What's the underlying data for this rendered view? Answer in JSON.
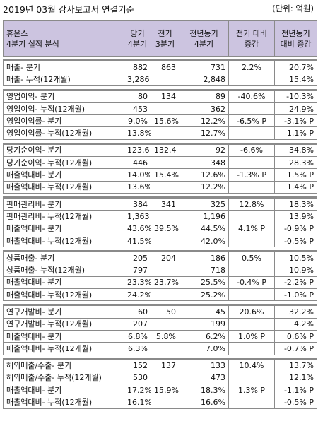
{
  "header": {
    "title": "2019년 03월 감사보고서 연결기준",
    "unit": "(단위: 억원)"
  },
  "table": {
    "columns": [
      "휴온스\n4분기 실적 분석",
      "당기\n4분기",
      "전기\n3분기",
      "전년동기\n4분기",
      "전기 대비\n증감",
      "전년동기\n대비 증감"
    ],
    "groups": [
      [
        [
          "매출- 분기",
          "882",
          "863",
          "731",
          "2.2%",
          "20.7%"
        ],
        [
          "매출- 누적(12개월)",
          "3,286",
          "",
          "2,848",
          "",
          "15.4%"
        ]
      ],
      [
        [
          "영업이익- 분기",
          "80",
          "134",
          "89",
          "-40.6%",
          "-10.3%"
        ],
        [
          "영업이익- 누적(12개월)",
          "453",
          "",
          "362",
          "",
          "24.9%"
        ],
        [
          "영업이익률- 분기",
          "9.0%",
          "15.6%",
          "12.2%",
          "-6.5% P",
          "-3.1% P"
        ],
        [
          "영업이익률- 누적(12개월)",
          "13.8%",
          "",
          "12.7%",
          "",
          "1.1% P"
        ]
      ],
      [
        [
          "당기순이익- 분기",
          "123.6",
          "132.4",
          "92",
          "-6.6%",
          "34.8%"
        ],
        [
          "당기순이익- 누적(12개월)",
          "446",
          "",
          "348",
          "",
          "28.3%"
        ],
        [
          "매출액대비- 분기",
          "14.0%",
          "15.4%",
          "12.6%",
          "-1.3% P",
          "1.5% P"
        ],
        [
          "매출액대비- 누적(12개월)",
          "13.6%",
          "",
          "12.2%",
          "",
          "1.4% P"
        ]
      ],
      [
        [
          "판매관리비- 분기",
          "384",
          "341",
          "325",
          "12.8%",
          "18.3%"
        ],
        [
          "판매관리비- 누적(12개월)",
          "1,363",
          "",
          "1,196",
          "",
          "13.9%"
        ],
        [
          "매출액대비- 분기",
          "43.6%",
          "39.5%",
          "44.5%",
          "4.1% P",
          "-0.9% P"
        ],
        [
          "매출액대비- 누적(12개월)",
          "41.5%",
          "",
          "42.0%",
          "",
          "-0.5% P"
        ]
      ],
      [
        [
          "상품매출- 분기",
          "205",
          "204",
          "186",
          "0.5%",
          "10.5%"
        ],
        [
          "상품매출- 누적(12개월)",
          "797",
          "",
          "718",
          "",
          "10.9%"
        ],
        [
          "매출액대비- 분기",
          "23.3%",
          "23.7%",
          "25.5%",
          "-0.4% P",
          "-2.2% P"
        ],
        [
          "매출액대비- 누적(12개월)",
          "24.2%",
          "",
          "25.2%",
          "",
          "-1.0% P"
        ]
      ],
      [
        [
          "연구개발비- 분기",
          "60",
          "50",
          "45",
          "20.6%",
          "32.2%"
        ],
        [
          "연구개발비- 누적(12개월)",
          "207",
          "",
          "199",
          "",
          "4.2%"
        ],
        [
          "매출액대비- 분기",
          "6.8%",
          "5.8%",
          "6.2%",
          "1.0% P",
          "0.6% P"
        ],
        [
          "매출액대비- 누적(12개월)",
          "6.3%",
          "",
          "7.0%",
          "",
          "-0.7% P"
        ]
      ],
      [
        [
          "해외매출/수출- 분기",
          "152",
          "137",
          "133",
          "10.4%",
          "13.7%"
        ],
        [
          "해외매출/수출- 누적(12개월)",
          "530",
          "",
          "473",
          "",
          "12.1%"
        ],
        [
          "매출액대비- 분기",
          "17.2%",
          "15.9%",
          "18.3%",
          "1.3% P",
          "-1.1% P"
        ],
        [
          "매출액대비- 누적(12개월)",
          "16.1%",
          "",
          "16.6%",
          "",
          "-0.5% P"
        ]
      ]
    ]
  }
}
